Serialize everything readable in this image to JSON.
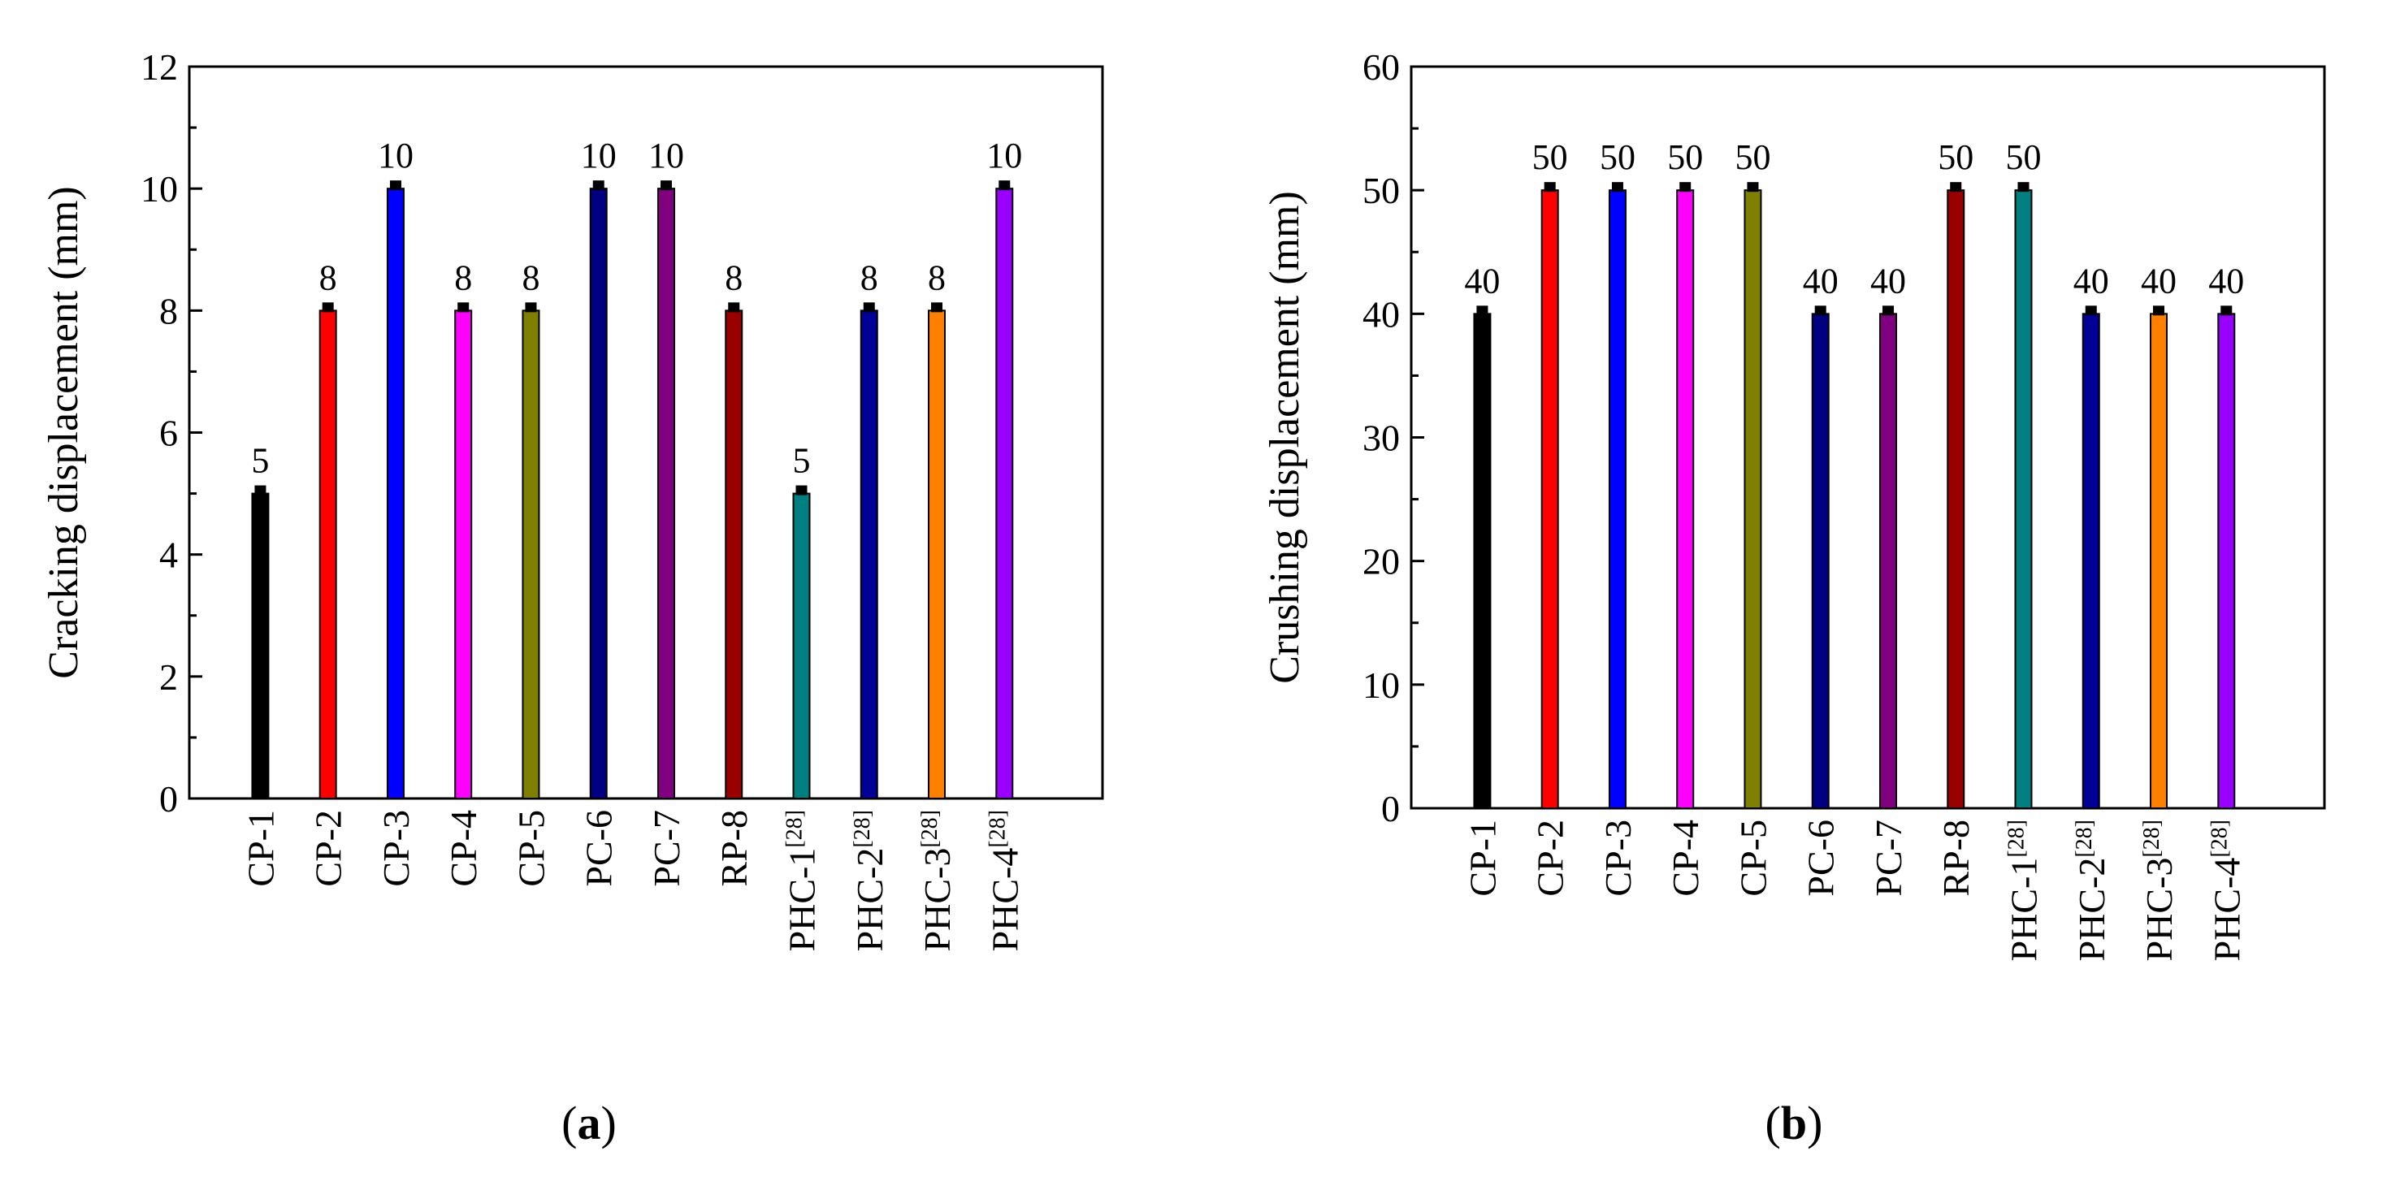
{
  "chart_data": [
    {
      "type": "bar",
      "panel_label": "(a)",
      "panel_letter": "a",
      "ylabel": "Cracking displacement (mm)",
      "xlabel": "",
      "ylim": [
        0,
        12
      ],
      "yticks": [
        0,
        2,
        4,
        6,
        8,
        10,
        12
      ],
      "categories": [
        {
          "name": "CP-1",
          "sup": ""
        },
        {
          "name": "CP-2",
          "sup": ""
        },
        {
          "name": "CP-3",
          "sup": ""
        },
        {
          "name": "CP-4",
          "sup": ""
        },
        {
          "name": "CP-5",
          "sup": ""
        },
        {
          "name": "PC-6",
          "sup": ""
        },
        {
          "name": "PC-7",
          "sup": ""
        },
        {
          "name": "RP-8",
          "sup": ""
        },
        {
          "name": "PHC-1",
          "sup": "[28]"
        },
        {
          "name": "PHC-2",
          "sup": "[28]"
        },
        {
          "name": "PHC-3",
          "sup": "[28]"
        },
        {
          "name": "PHC-4",
          "sup": "[28]"
        }
      ],
      "values": [
        5,
        8,
        10,
        8,
        8,
        10,
        10,
        8,
        5,
        8,
        8,
        10
      ],
      "data_labels": [
        "5",
        "8",
        "10",
        "8",
        "8",
        "10",
        "10",
        "8",
        "5",
        "8",
        "8",
        "10"
      ],
      "colors": [
        "#000000",
        "#ff0000",
        "#0000ff",
        "#ff00ff",
        "#808000",
        "#000080",
        "#800080",
        "#990000",
        "#008080",
        "#000099",
        "#ff8000",
        "#9900ff"
      ]
    },
    {
      "type": "bar",
      "panel_label": "(b)",
      "panel_letter": "b",
      "ylabel": "Crushing displacement (mm)",
      "xlabel": "",
      "ylim": [
        0,
        60
      ],
      "yticks": [
        0,
        10,
        20,
        30,
        40,
        50,
        60
      ],
      "categories": [
        {
          "name": "CP-1",
          "sup": ""
        },
        {
          "name": "CP-2",
          "sup": ""
        },
        {
          "name": "CP-3",
          "sup": ""
        },
        {
          "name": "CP-4",
          "sup": ""
        },
        {
          "name": "CP-5",
          "sup": ""
        },
        {
          "name": "PC-6",
          "sup": ""
        },
        {
          "name": "PC-7",
          "sup": ""
        },
        {
          "name": "RP-8",
          "sup": ""
        },
        {
          "name": "PHC-1",
          "sup": "[28]"
        },
        {
          "name": "PHC-2",
          "sup": "[28]"
        },
        {
          "name": "PHC-3",
          "sup": "[28]"
        },
        {
          "name": "PHC-4",
          "sup": "[28]"
        }
      ],
      "values": [
        40,
        50,
        50,
        50,
        50,
        40,
        40,
        50,
        50,
        40,
        40,
        40
      ],
      "data_labels": [
        "40",
        "50",
        "50",
        "50",
        "50",
        "40",
        "40",
        "50",
        "50",
        "40",
        "40",
        "40"
      ],
      "colors": [
        "#000000",
        "#ff0000",
        "#0000ff",
        "#ff00ff",
        "#808000",
        "#000080",
        "#800080",
        "#990000",
        "#008080",
        "#000099",
        "#ff8000",
        "#9900ff"
      ]
    }
  ]
}
